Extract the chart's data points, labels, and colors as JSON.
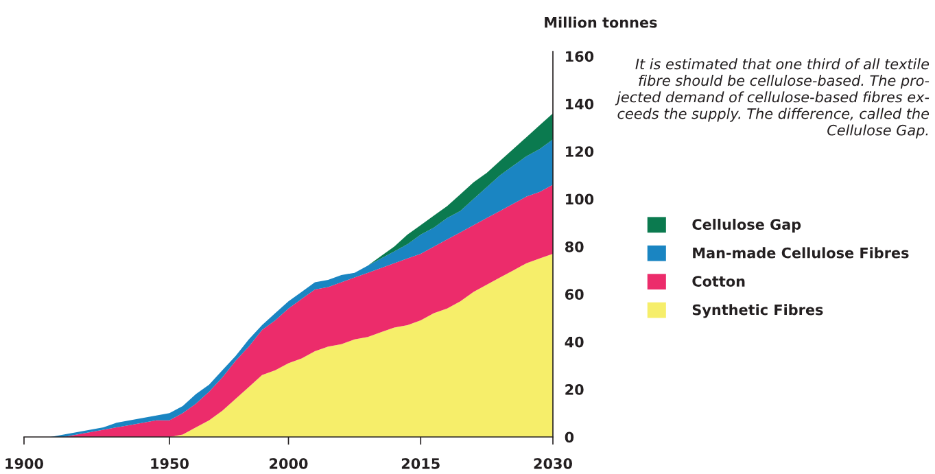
{
  "chart_data": {
    "type": "area",
    "stacked": true,
    "ylabel": "Million tonnes",
    "categories": [
      "1900",
      null,
      null,
      null,
      null,
      null,
      null,
      null,
      null,
      null,
      null,
      "1950",
      null,
      null,
      null,
      null,
      null,
      null,
      null,
      null,
      "2000",
      null,
      null,
      null,
      null,
      null,
      null,
      null,
      null,
      null,
      "2015",
      null,
      null,
      null,
      null,
      null,
      null,
      null,
      null,
      null,
      "2030"
    ],
    "ylim": [
      0,
      162
    ],
    "yticks": [
      0,
      20,
      40,
      60,
      80,
      100,
      120,
      140,
      160
    ],
    "series": [
      {
        "name": "Synthetic Fibres",
        "color": "#f6ee6a",
        "values": [
          0,
          0,
          0,
          0,
          0,
          0,
          0,
          0,
          0,
          0,
          0,
          0,
          1,
          4,
          7,
          11,
          16,
          21,
          26,
          28,
          31,
          33,
          36,
          38,
          39,
          41,
          42,
          44,
          46,
          47,
          49,
          52,
          54,
          57,
          61,
          64,
          67,
          70,
          73,
          75,
          77
        ]
      },
      {
        "name": "Cotton",
        "color": "#ec2c6b",
        "values": [
          0,
          0,
          0,
          0,
          1,
          2,
          3,
          4,
          5,
          6,
          7,
          7,
          9,
          10,
          12,
          14,
          16,
          17,
          19,
          21,
          23,
          25,
          26,
          25,
          26,
          26,
          27,
          27,
          27,
          28,
          28,
          28,
          29,
          29,
          28,
          28,
          28,
          28,
          28,
          28,
          29
        ]
      },
      {
        "name": "Man-made Cellulose Fibres",
        "color": "#1a85c2",
        "values": [
          0,
          0,
          0,
          1,
          1,
          1,
          1,
          2,
          2,
          2,
          2,
          3,
          3,
          4,
          3,
          3,
          2,
          3,
          2,
          3,
          3,
          3,
          3,
          3,
          3,
          2,
          3,
          4,
          5,
          6,
          8,
          8,
          9,
          9,
          11,
          13,
          15,
          16,
          17,
          18,
          19
        ]
      },
      {
        "name": "Cellulose Gap",
        "color": "#0b7a4f",
        "values": [
          0,
          0,
          0,
          0,
          0,
          0,
          0,
          0,
          0,
          0,
          0,
          0,
          0,
          0,
          0,
          0,
          0,
          0,
          0,
          0,
          0,
          0,
          0,
          0,
          0,
          0,
          0,
          1,
          2,
          4,
          4,
          5,
          5,
          7,
          7,
          6,
          6,
          7,
          8,
          10,
          11
        ]
      }
    ],
    "legend": "right",
    "grid": false,
    "annotations": [
      "It is estimated that one third of all textile\nfibre should be cellulose-based. The pro-\njected demand of cellulose-based fibres ex-\nceeds the supply. The difference, called the\nCellulose Gap."
    ]
  }
}
